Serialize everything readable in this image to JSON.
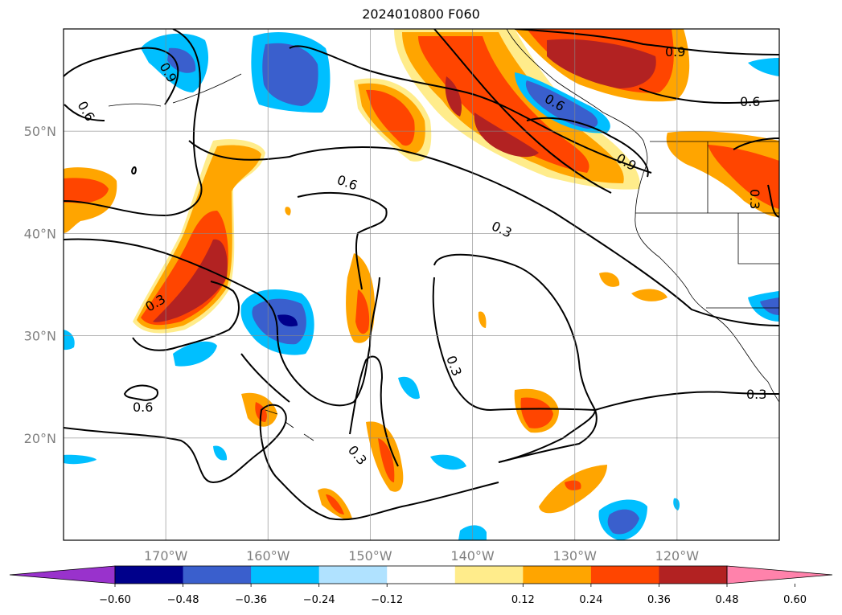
{
  "title": "2024010800 F060",
  "map": {
    "longitude_labels": [
      "170°W",
      "160°W",
      "150°W",
      "140°W",
      "130°W",
      "120°W"
    ],
    "latitude_labels": [
      "50°N",
      "40°N",
      "30°N",
      "20°N"
    ],
    "longitudes": [
      -170,
      -160,
      -150,
      -140,
      -130,
      -120
    ],
    "latitudes": [
      50,
      40,
      30,
      20
    ],
    "extent": {
      "lon_min": -180,
      "lon_max": -110,
      "lat_min": 10,
      "lat_max": 60
    },
    "grid": true,
    "contour_labels": [
      "0.9",
      "0.6",
      "0.6",
      "0.3",
      "0.3",
      "0.9",
      "0.6",
      "0.6",
      "0.3",
      "0.3",
      "0.3",
      "0.9",
      "0.6",
      "0.3"
    ],
    "colors": {
      "purple": "#9932cc",
      "navy": "#00008b",
      "royal": "#3a5fcd",
      "sky": "#00bfff",
      "light_sky": "#b0e2ff",
      "white": "#ffffff",
      "light_yellow": "#ffec8b",
      "orange": "#ffa500",
      "orange_red": "#ff4500",
      "firebrick": "#b22222",
      "pink": "#ff82ab"
    }
  },
  "colorbar": {
    "ticks": [
      "−0.60",
      "−0.48",
      "−0.36",
      "−0.24",
      "−0.12",
      "0.12",
      "0.24",
      "0.36",
      "0.48",
      "0.60"
    ],
    "extend": "both"
  }
}
